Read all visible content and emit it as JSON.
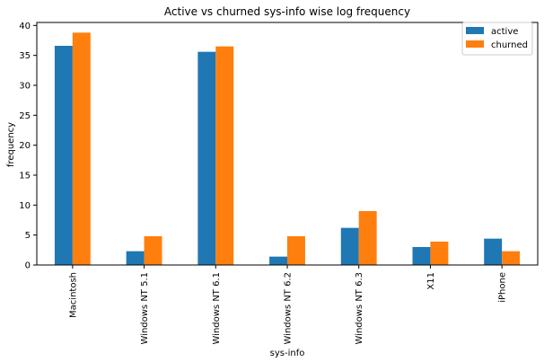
{
  "chart_data": {
    "type": "bar",
    "title": "Active vs churned sys-info wise log frequency",
    "xlabel": "sys-info",
    "ylabel": "frequency",
    "categories": [
      "Macintosh",
      "Windows NT 5.1",
      "Windows NT 6.1",
      "Windows NT 6.2",
      "Windows NT 6.3",
      "X11",
      "iPhone"
    ],
    "series": [
      {
        "name": "active",
        "color": "#1f77b4",
        "values": [
          36.6,
          2.3,
          35.6,
          1.4,
          6.2,
          3.0,
          4.4
        ]
      },
      {
        "name": "churned",
        "color": "#ff7f0e",
        "values": [
          38.8,
          4.8,
          36.5,
          4.8,
          9.0,
          3.9,
          2.3
        ]
      }
    ],
    "ylim": [
      0,
      40.5
    ],
    "yticks": [
      0,
      5,
      10,
      15,
      20,
      25,
      30,
      35,
      40
    ],
    "legend_position": "top-right",
    "grid": false
  }
}
